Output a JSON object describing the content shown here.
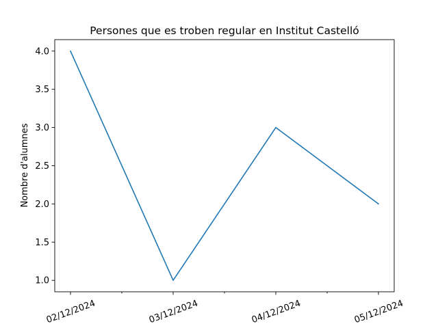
{
  "chart_data": {
    "type": "line",
    "title": "Persones que es troben regular en Institut Castelló",
    "xlabel": "",
    "ylabel": "Nombre d'alumnes",
    "x": [
      "02/12/2024",
      "03/12/2024",
      "04/12/2024",
      "05/12/2024"
    ],
    "x_tick_labels": [
      "02/12/2024",
      "03/12/2024",
      "04/12/2024",
      "05/12/2024"
    ],
    "series": [
      {
        "values": [
          4.0,
          1.0,
          3.0,
          2.0
        ],
        "color": "#1f77b4"
      }
    ],
    "y_ticks": [
      1.0,
      1.5,
      2.0,
      2.5,
      3.0,
      3.5,
      4.0
    ],
    "y_tick_labels": [
      "1.0",
      "1.5",
      "2.0",
      "2.5",
      "3.0",
      "3.5",
      "4.0"
    ],
    "ylim": [
      0.85,
      4.15
    ],
    "x_minor_ticks": true,
    "grid": false,
    "legend": "none"
  }
}
